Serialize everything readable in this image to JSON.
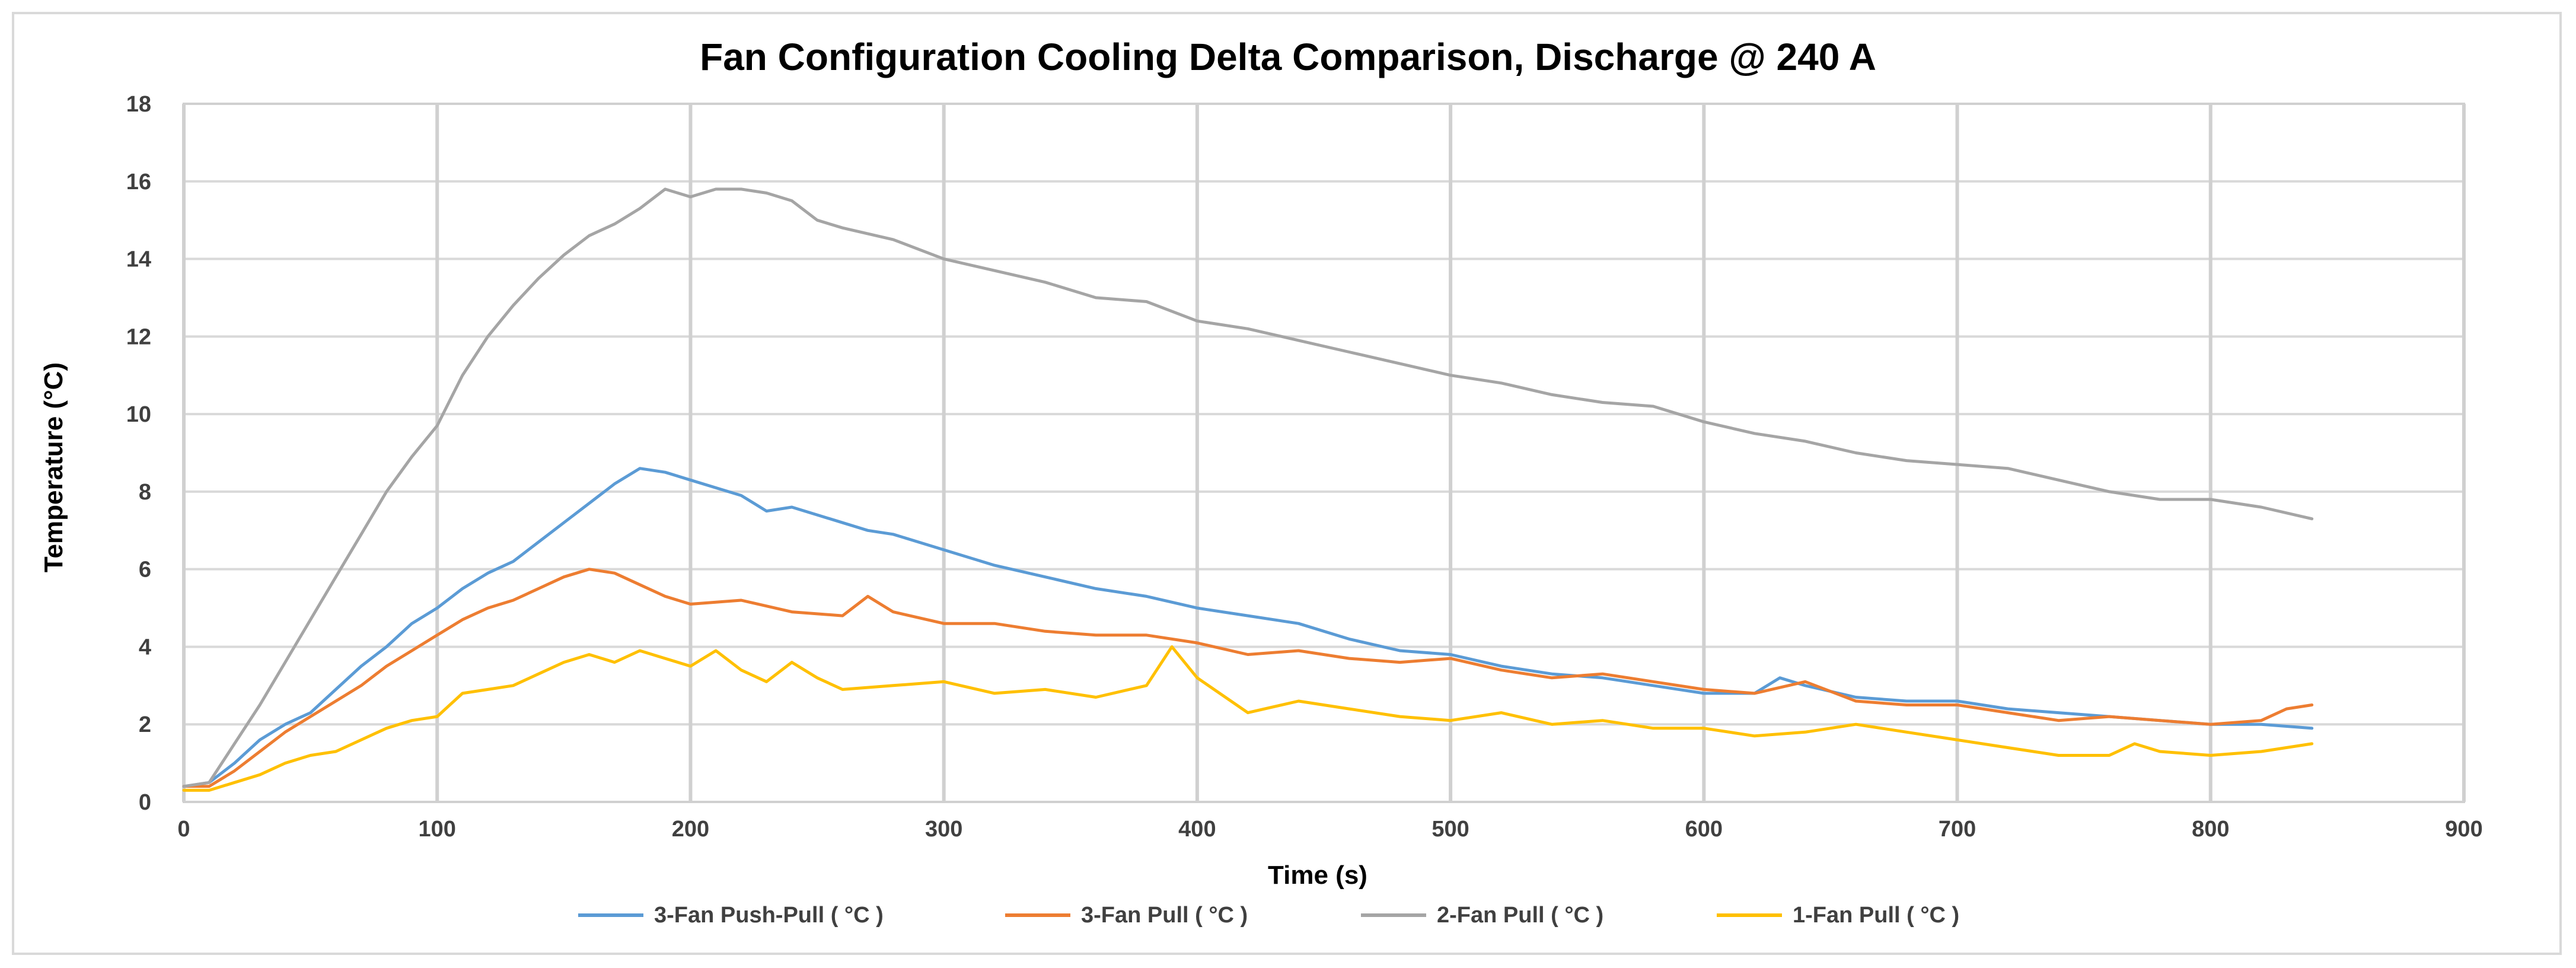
{
  "chart_data": {
    "type": "line",
    "title": "Fan Configuration Cooling Delta Comparison, Discharge @ 240 A",
    "xlabel": "Time (s)",
    "ylabel": "Temperature (°C)",
    "xlim": [
      0,
      900
    ],
    "ylim": [
      0,
      18
    ],
    "xticks": [
      "0",
      "100",
      "200",
      "300",
      "400",
      "500",
      "600",
      "700",
      "800",
      "900"
    ],
    "yticks": [
      "0",
      "2",
      "4",
      "6",
      "8",
      "10",
      "12",
      "14",
      "16",
      "18"
    ],
    "grid": true,
    "legend_position": "bottom",
    "series": [
      {
        "name": "3-Fan Push-Pull ( °C )",
        "color": "#5b9bd5",
        "x": [
          0,
          10,
          20,
          30,
          40,
          50,
          60,
          70,
          80,
          90,
          100,
          110,
          120,
          130,
          140,
          150,
          160,
          170,
          180,
          190,
          200,
          210,
          220,
          230,
          240,
          250,
          260,
          270,
          280,
          290,
          300,
          320,
          340,
          360,
          380,
          400,
          420,
          440,
          460,
          480,
          500,
          520,
          540,
          560,
          580,
          600,
          620,
          630,
          640,
          660,
          680,
          700,
          720,
          740,
          760,
          780,
          800,
          820,
          840
        ],
        "y": [
          0.4,
          0.5,
          1.0,
          1.6,
          2.0,
          2.3,
          2.9,
          3.5,
          4.0,
          4.6,
          5.0,
          5.5,
          5.9,
          6.2,
          6.7,
          7.2,
          7.7,
          8.2,
          8.6,
          8.5,
          8.3,
          8.1,
          7.9,
          7.5,
          7.6,
          7.4,
          7.2,
          7.0,
          6.9,
          6.7,
          6.5,
          6.1,
          5.8,
          5.5,
          5.3,
          5.0,
          4.8,
          4.6,
          4.2,
          3.9,
          3.8,
          3.5,
          3.3,
          3.2,
          3.0,
          2.8,
          2.8,
          3.2,
          3.0,
          2.7,
          2.6,
          2.6,
          2.4,
          2.3,
          2.2,
          2.1,
          2.0,
          2.0,
          1.9
        ]
      },
      {
        "name": "3-Fan Pull ( °C )",
        "color": "#ed7d31",
        "x": [
          0,
          10,
          20,
          30,
          40,
          50,
          60,
          70,
          80,
          90,
          100,
          110,
          120,
          130,
          140,
          150,
          160,
          170,
          180,
          190,
          200,
          220,
          240,
          260,
          270,
          280,
          300,
          320,
          340,
          360,
          380,
          400,
          420,
          440,
          460,
          480,
          500,
          520,
          540,
          560,
          580,
          600,
          620,
          640,
          660,
          680,
          700,
          720,
          740,
          760,
          780,
          800,
          820,
          830,
          840
        ],
        "y": [
          0.4,
          0.4,
          0.8,
          1.3,
          1.8,
          2.2,
          2.6,
          3.0,
          3.5,
          3.9,
          4.3,
          4.7,
          5.0,
          5.2,
          5.5,
          5.8,
          6.0,
          5.9,
          5.6,
          5.3,
          5.1,
          5.2,
          4.9,
          4.8,
          5.3,
          4.9,
          4.6,
          4.6,
          4.4,
          4.3,
          4.3,
          4.1,
          3.8,
          3.9,
          3.7,
          3.6,
          3.7,
          3.4,
          3.2,
          3.3,
          3.1,
          2.9,
          2.8,
          3.1,
          2.6,
          2.5,
          2.5,
          2.3,
          2.1,
          2.2,
          2.1,
          2.0,
          2.1,
          2.4,
          2.5
        ]
      },
      {
        "name": "2-Fan Pull ( °C )",
        "color": "#a5a5a5",
        "x": [
          0,
          10,
          20,
          30,
          40,
          50,
          60,
          70,
          80,
          90,
          100,
          110,
          120,
          130,
          140,
          150,
          160,
          170,
          180,
          190,
          200,
          210,
          220,
          230,
          240,
          250,
          260,
          280,
          300,
          320,
          340,
          360,
          380,
          400,
          420,
          440,
          460,
          480,
          500,
          520,
          540,
          560,
          580,
          600,
          620,
          640,
          660,
          680,
          700,
          720,
          740,
          760,
          780,
          800,
          820,
          840
        ],
        "y": [
          0.4,
          0.5,
          1.5,
          2.5,
          3.6,
          4.7,
          5.8,
          6.9,
          8.0,
          8.9,
          9.7,
          11.0,
          12.0,
          12.8,
          13.5,
          14.1,
          14.6,
          14.9,
          15.3,
          15.8,
          15.6,
          15.8,
          15.8,
          15.7,
          15.5,
          15.0,
          14.8,
          14.5,
          14.0,
          13.7,
          13.4,
          13.0,
          12.9,
          12.4,
          12.2,
          11.9,
          11.6,
          11.3,
          11.0,
          10.8,
          10.5,
          10.3,
          10.2,
          9.8,
          9.5,
          9.3,
          9.0,
          8.8,
          8.7,
          8.6,
          8.3,
          8.0,
          7.8,
          7.8,
          7.6,
          7.3
        ]
      },
      {
        "name": "1-Fan Pull ( °C )",
        "color": "#ffc000",
        "x": [
          0,
          10,
          20,
          30,
          40,
          50,
          60,
          70,
          80,
          90,
          100,
          110,
          120,
          130,
          140,
          150,
          160,
          170,
          180,
          190,
          200,
          210,
          220,
          230,
          240,
          250,
          260,
          280,
          300,
          320,
          340,
          360,
          380,
          390,
          400,
          420,
          440,
          460,
          480,
          500,
          520,
          540,
          560,
          580,
          600,
          620,
          640,
          660,
          680,
          700,
          720,
          740,
          760,
          770,
          780,
          800,
          820,
          840
        ],
        "y": [
          0.3,
          0.3,
          0.5,
          0.7,
          1.0,
          1.2,
          1.3,
          1.6,
          1.9,
          2.1,
          2.2,
          2.8,
          2.9,
          3.0,
          3.3,
          3.6,
          3.8,
          3.6,
          3.9,
          3.7,
          3.5,
          3.9,
          3.4,
          3.1,
          3.6,
          3.2,
          2.9,
          3.0,
          3.1,
          2.8,
          2.9,
          2.7,
          3.0,
          4.0,
          3.2,
          2.3,
          2.6,
          2.4,
          2.2,
          2.1,
          2.3,
          2.0,
          2.1,
          1.9,
          1.9,
          1.7,
          1.8,
          2.0,
          1.8,
          1.6,
          1.4,
          1.2,
          1.2,
          1.5,
          1.3,
          1.2,
          1.3,
          1.5
        ]
      }
    ]
  }
}
